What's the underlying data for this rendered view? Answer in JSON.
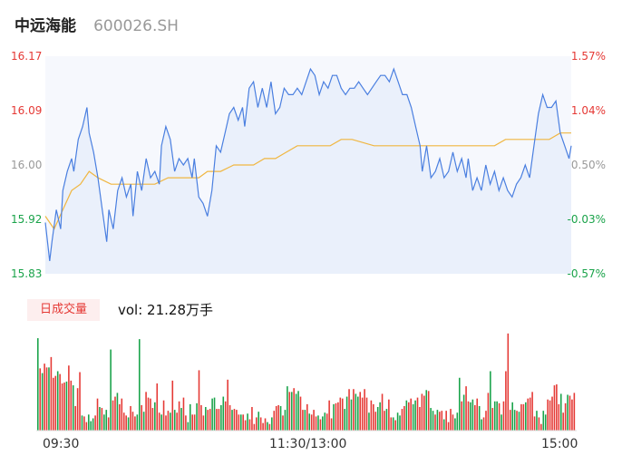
{
  "header": {
    "name": "中远海能",
    "code": "600026.SH"
  },
  "price_axis": {
    "left_labels": [
      "16.17",
      "16.09",
      "16.00",
      "15.92",
      "15.83"
    ],
    "right_labels": [
      "1.57%",
      "1.04%",
      "0.50%",
      "-0.03%",
      "-0.57%"
    ],
    "colors": {
      "up": "#e53935",
      "neutral": "#999999",
      "down": "#1aa34a"
    }
  },
  "volume_panel": {
    "badge": "日成交量",
    "vol_text": "vol: 21.28万手"
  },
  "time_axis": {
    "labels": [
      "09:30",
      "11:30/13:00",
      "15:00"
    ]
  },
  "chart_data": [
    {
      "type": "line",
      "ylim": [
        15.83,
        16.17
      ],
      "x_range": [
        0,
        240
      ],
      "series": [
        {
          "color": "#4a7fe0",
          "points": [
            [
              0,
              15.91
            ],
            [
              2,
              15.85
            ],
            [
              3,
              15.88
            ],
            [
              5,
              15.93
            ],
            [
              7,
              15.9
            ],
            [
              8,
              15.96
            ],
            [
              10,
              15.99
            ],
            [
              12,
              16.01
            ],
            [
              13,
              15.99
            ],
            [
              15,
              16.04
            ],
            [
              17,
              16.06
            ],
            [
              19,
              16.09
            ],
            [
              20,
              16.05
            ],
            [
              22,
              16.02
            ],
            [
              24,
              15.98
            ],
            [
              26,
              15.93
            ],
            [
              28,
              15.88
            ],
            [
              29,
              15.93
            ],
            [
              31,
              15.9
            ],
            [
              33,
              15.96
            ],
            [
              35,
              15.98
            ],
            [
              37,
              15.95
            ],
            [
              39,
              15.97
            ],
            [
              40,
              15.92
            ],
            [
              42,
              15.99
            ],
            [
              44,
              15.96
            ],
            [
              46,
              16.01
            ],
            [
              48,
              15.98
            ],
            [
              50,
              15.99
            ],
            [
              52,
              15.97
            ],
            [
              53,
              16.03
            ],
            [
              55,
              16.06
            ],
            [
              57,
              16.04
            ],
            [
              59,
              15.99
            ],
            [
              61,
              16.01
            ],
            [
              63,
              16.0
            ],
            [
              65,
              16.01
            ],
            [
              67,
              15.98
            ],
            [
              68,
              16.01
            ],
            [
              70,
              15.95
            ],
            [
              72,
              15.94
            ],
            [
              74,
              15.92
            ],
            [
              76,
              15.96
            ],
            [
              78,
              16.03
            ],
            [
              80,
              16.02
            ],
            [
              82,
              16.05
            ],
            [
              84,
              16.08
            ],
            [
              86,
              16.09
            ],
            [
              88,
              16.07
            ],
            [
              90,
              16.09
            ],
            [
              91,
              16.06
            ],
            [
              93,
              16.12
            ],
            [
              95,
              16.13
            ],
            [
              97,
              16.09
            ],
            [
              99,
              16.12
            ],
            [
              101,
              16.09
            ],
            [
              103,
              16.13
            ],
            [
              105,
              16.08
            ],
            [
              107,
              16.09
            ],
            [
              109,
              16.12
            ],
            [
              111,
              16.11
            ],
            [
              113,
              16.11
            ],
            [
              115,
              16.12
            ],
            [
              117,
              16.11
            ],
            [
              119,
              16.13
            ],
            [
              121,
              16.15
            ],
            [
              123,
              16.14
            ],
            [
              125,
              16.11
            ],
            [
              127,
              16.13
            ],
            [
              129,
              16.12
            ],
            [
              131,
              16.14
            ],
            [
              133,
              16.14
            ],
            [
              135,
              16.12
            ],
            [
              137,
              16.11
            ],
            [
              139,
              16.12
            ],
            [
              141,
              16.12
            ],
            [
              143,
              16.13
            ],
            [
              145,
              16.12
            ],
            [
              147,
              16.11
            ],
            [
              149,
              16.12
            ],
            [
              151,
              16.13
            ],
            [
              153,
              16.14
            ],
            [
              155,
              16.14
            ],
            [
              157,
              16.13
            ],
            [
              159,
              16.15
            ],
            [
              161,
              16.13
            ],
            [
              163,
              16.11
            ],
            [
              165,
              16.11
            ],
            [
              167,
              16.09
            ],
            [
              169,
              16.06
            ],
            [
              171,
              16.03
            ],
            [
              172,
              15.99
            ],
            [
              174,
              16.03
            ],
            [
              176,
              15.98
            ],
            [
              178,
              15.99
            ],
            [
              180,
              16.01
            ],
            [
              182,
              15.98
            ],
            [
              184,
              15.99
            ],
            [
              186,
              16.02
            ],
            [
              188,
              15.99
            ],
            [
              190,
              16.01
            ],
            [
              192,
              15.98
            ],
            [
              193,
              16.01
            ],
            [
              195,
              15.96
            ],
            [
              197,
              15.98
            ],
            [
              199,
              15.96
            ],
            [
              201,
              16.0
            ],
            [
              203,
              15.97
            ],
            [
              205,
              15.99
            ],
            [
              207,
              15.96
            ],
            [
              209,
              15.98
            ],
            [
              211,
              15.96
            ],
            [
              213,
              15.95
            ],
            [
              215,
              15.97
            ],
            [
              217,
              15.98
            ],
            [
              219,
              16.0
            ],
            [
              221,
              15.98
            ],
            [
              223,
              16.03
            ],
            [
              225,
              16.08
            ],
            [
              227,
              16.11
            ],
            [
              229,
              16.09
            ],
            [
              231,
              16.09
            ],
            [
              233,
              16.1
            ],
            [
              235,
              16.05
            ],
            [
              237,
              16.03
            ],
            [
              239,
              16.01
            ],
            [
              240,
              16.03
            ]
          ]
        },
        {
          "color": "#f0b640",
          "points": [
            [
              0,
              15.92
            ],
            [
              4,
              15.9
            ],
            [
              8,
              15.93
            ],
            [
              12,
              15.96
            ],
            [
              16,
              15.97
            ],
            [
              20,
              15.99
            ],
            [
              24,
              15.98
            ],
            [
              30,
              15.97
            ],
            [
              40,
              15.97
            ],
            [
              50,
              15.97
            ],
            [
              56,
              15.98
            ],
            [
              60,
              15.98
            ],
            [
              70,
              15.98
            ],
            [
              74,
              15.99
            ],
            [
              80,
              15.99
            ],
            [
              86,
              16.0
            ],
            [
              90,
              16.0
            ],
            [
              95,
              16.0
            ],
            [
              100,
              16.01
            ],
            [
              105,
              16.01
            ],
            [
              110,
              16.02
            ],
            [
              115,
              16.03
            ],
            [
              120,
              16.03
            ],
            [
              125,
              16.03
            ],
            [
              130,
              16.03
            ],
            [
              135,
              16.04
            ],
            [
              140,
              16.04
            ],
            [
              150,
              16.03
            ],
            [
              160,
              16.03
            ],
            [
              170,
              16.03
            ],
            [
              180,
              16.03
            ],
            [
              190,
              16.03
            ],
            [
              200,
              16.03
            ],
            [
              205,
              16.03
            ],
            [
              210,
              16.04
            ],
            [
              220,
              16.04
            ],
            [
              230,
              16.04
            ],
            [
              235,
              16.05
            ],
            [
              240,
              16.05
            ]
          ]
        }
      ]
    },
    {
      "type": "bar",
      "series_name": "volume",
      "ylim": [
        0,
        100
      ],
      "values": [
        98,
        66,
        61,
        71,
        67,
        67,
        78,
        56,
        58,
        63,
        60,
        50,
        51,
        52,
        69,
        53,
        48,
        26,
        45,
        62,
        16,
        15,
        9,
        17,
        10,
        13,
        16,
        34,
        25,
        24,
        17,
        22,
        14,
        86,
        32,
        36,
        40,
        28,
        34,
        19,
        16,
        14,
        26,
        20,
        15,
        17,
        97,
        27,
        20,
        41,
        35,
        34,
        24,
        30,
        50,
        19,
        17,
        32,
        16,
        21,
        19,
        53,
        22,
        19,
        31,
        24,
        35,
        16,
        9,
        28,
        17,
        17,
        29,
        64,
        27,
        16,
        25,
        22,
        23,
        34,
        35,
        23,
        23,
        27,
        36,
        31,
        54,
        27,
        22,
        23,
        22,
        17,
        17,
        17,
        11,
        18,
        12,
        25,
        7,
        14,
        20,
        14,
        8,
        13,
        9,
        7,
        14,
        21,
        26,
        27,
        26,
        16,
        22,
        47,
        41,
        41,
        45,
        39,
        42,
        36,
        22,
        22,
        28,
        18,
        17,
        22,
        15,
        16,
        12,
        15,
        19,
        18,
        32,
        13,
        28,
        29,
        30,
        35,
        34,
        23,
        36,
        44,
        33,
        44,
        39,
        36,
        41,
        35,
        44,
        35,
        19,
        32,
        28,
        20,
        25,
        30,
        39,
        21,
        23,
        33,
        14,
        14,
        11,
        19,
        16,
        23,
        26,
        32,
        30,
        34,
        28,
        32,
        35,
        25,
        39,
        37,
        43,
        42,
        24,
        21,
        17,
        22,
        20,
        21,
        12,
        21,
        9,
        23,
        17,
        13,
        19,
        56,
        31,
        38,
        47,
        31,
        30,
        33,
        27,
        34,
        26,
        12,
        14,
        21,
        40,
        63,
        24,
        31,
        31,
        29,
        17,
        31,
        63,
        103,
        22,
        30,
        22,
        21,
        20,
        28,
        28,
        30,
        34,
        35,
        41,
        15,
        21,
        14,
        7,
        21,
        17,
        33,
        32,
        36,
        48,
        49,
        28,
        39,
        19,
        29,
        38,
        37,
        33,
        40
      ],
      "colors": [
        "g",
        "r",
        "g",
        "r",
        "r",
        "g",
        "r",
        "r",
        "r",
        "g",
        "r",
        "r",
        "r",
        "g",
        "r",
        "r",
        "g",
        "r",
        "r",
        "r",
        "g",
        "r",
        "r",
        "g",
        "g",
        "g",
        "r",
        "r",
        "g",
        "r",
        "g",
        "g",
        "r",
        "g",
        "r",
        "r",
        "g",
        "r",
        "r",
        "r",
        "r",
        "g",
        "r",
        "r",
        "r",
        "g",
        "g",
        "r",
        "g",
        "r",
        "r",
        "r",
        "r",
        "g",
        "r",
        "r",
        "g",
        "r",
        "r",
        "r",
        "g",
        "r",
        "g",
        "r",
        "r",
        "g",
        "r",
        "r",
        "g",
        "g",
        "r",
        "r",
        "g",
        "r",
        "r",
        "r",
        "g",
        "r",
        "r",
        "g",
        "g",
        "r",
        "r",
        "g",
        "g",
        "r",
        "r",
        "r",
        "g",
        "r",
        "r",
        "r",
        "g",
        "r",
        "r",
        "g",
        "r",
        "r",
        "r",
        "r",
        "g",
        "r",
        "r",
        "r",
        "g",
        "r",
        "g",
        "r",
        "r",
        "r",
        "g",
        "r",
        "g",
        "g",
        "r",
        "g",
        "r",
        "g",
        "g",
        "r",
        "r",
        "g",
        "r",
        "g",
        "r",
        "r",
        "r",
        "g",
        "r",
        "g",
        "g",
        "r",
        "r",
        "r",
        "g",
        "r",
        "r",
        "r",
        "r",
        "g",
        "g",
        "r",
        "g",
        "r",
        "g",
        "g",
        "r",
        "r",
        "r",
        "r",
        "g",
        "r",
        "r",
        "r",
        "g",
        "g",
        "r",
        "r",
        "g",
        "r",
        "r",
        "g",
        "r",
        "g",
        "g",
        "r",
        "r",
        "g",
        "r",
        "r",
        "g",
        "g",
        "r",
        "r",
        "r",
        "r",
        "g",
        "r",
        "g",
        "g",
        "r",
        "g",
        "r",
        "r",
        "g",
        "r",
        "r",
        "r",
        "r",
        "g",
        "g",
        "g",
        "r",
        "g",
        "r",
        "r",
        "g",
        "g",
        "r",
        "r",
        "g",
        "g",
        "r",
        "r",
        "r",
        "g",
        "r",
        "g",
        "g",
        "r",
        "g",
        "r",
        "r",
        "r",
        "r",
        "g",
        "g",
        "r",
        "g",
        "r",
        "r",
        "g",
        "r",
        "r",
        "r",
        "r",
        "g",
        "r",
        "r",
        "g",
        "g",
        "r",
        "r",
        "r",
        "r",
        "r",
        "r",
        "g",
        "r",
        "r",
        "g",
        "r",
        "r",
        "r",
        "r"
      ]
    }
  ]
}
